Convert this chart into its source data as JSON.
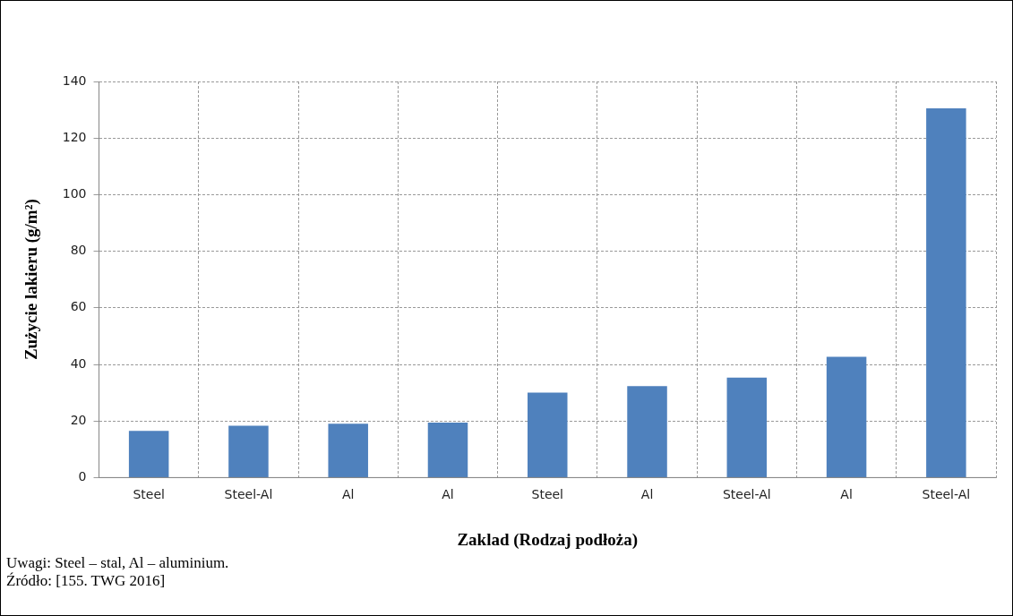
{
  "chart_data": {
    "type": "bar",
    "xlabel": "Zaklad (Rodzaj podłoża)",
    "ylabel": "Zużycie lakieru (g/m²)",
    "categories": [
      "Steel",
      "Steel-Al",
      "Al",
      "Al",
      "Steel",
      "Al",
      "Steel-Al",
      "Al",
      "Steel-Al"
    ],
    "values": [
      16.5,
      18.3,
      19,
      19.4,
      30,
      32.3,
      35.3,
      42.7,
      130.5
    ],
    "color": "#4f81bd",
    "ylim": [
      0,
      140
    ],
    "yticks": [
      0,
      20,
      40,
      60,
      80,
      100,
      120,
      140
    ],
    "grid": true,
    "legend": false,
    "annotations": [
      "Uwagi: Steel – stal, Al – aluminium.",
      "Źródło: [155. TWG 2016]"
    ]
  }
}
